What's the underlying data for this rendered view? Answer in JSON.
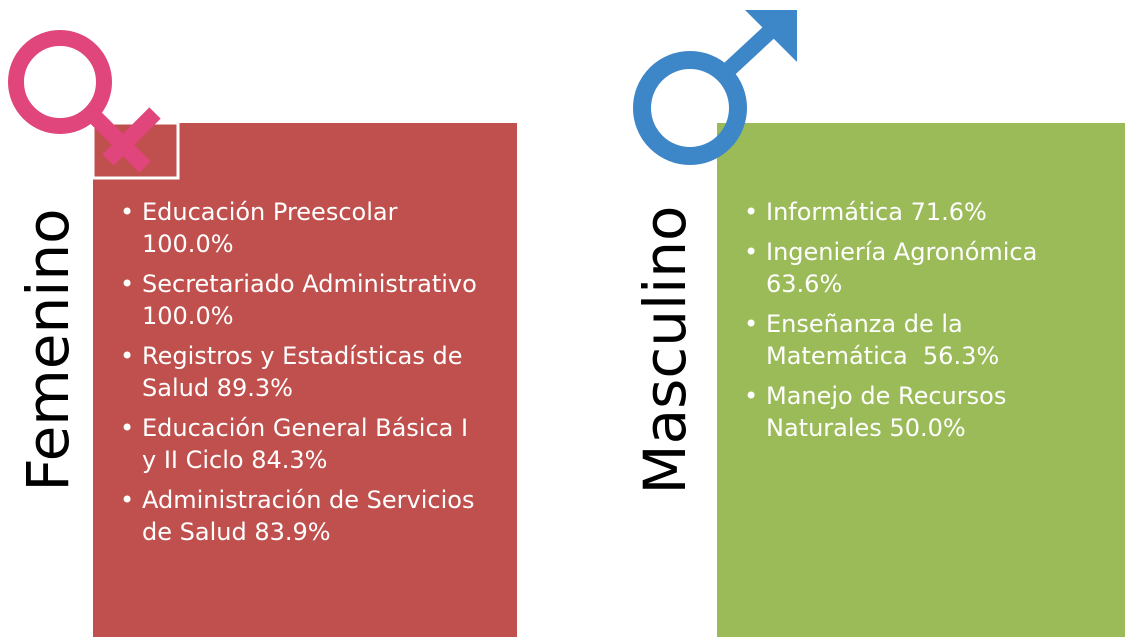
{
  "panels": [
    {
      "label": "Femenino",
      "items": [
        "Educación Preescolar 100.0%",
        "Secretariado Administrativo 100.0%",
        "Registros y Estadísticas de Salud 89.3%",
        "Educación General Básica I y II Ciclo 84.3%",
        "Administración de Servicios de Salud 83.9%"
      ]
    },
    {
      "label": "Masculino",
      "items": [
        "Informática 71.6%",
        "Ingeniería Agronómica 63.6%",
        "Enseñanza de la Matemática  56.3%",
        "Manejo de Recursos Naturales 50.0%"
      ]
    }
  ]
}
